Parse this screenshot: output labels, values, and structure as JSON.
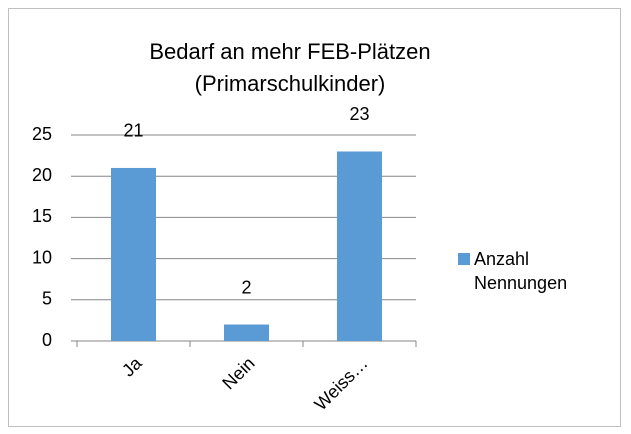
{
  "chart_data": {
    "type": "bar",
    "title": "Bedarf an mehr FEB-Plätzen (Primarschulkinder)",
    "categories": [
      "Ja",
      "Nein",
      "Weiss…"
    ],
    "series": [
      {
        "name": "Anzahl Nennungen",
        "color": "#5b9bd5",
        "values": [
          21,
          2,
          23
        ]
      }
    ],
    "ylim": [
      0,
      25
    ],
    "yticks": [
      0,
      5,
      10,
      15,
      20,
      25
    ],
    "grid": true,
    "legend": "right"
  }
}
